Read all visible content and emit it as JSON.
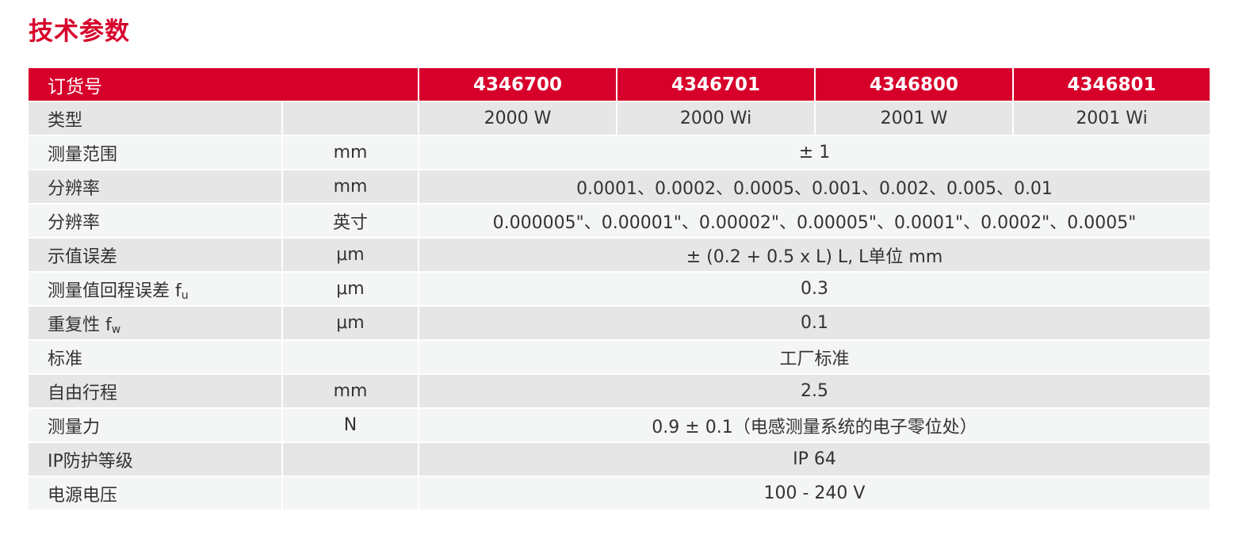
{
  "title": "技术参数",
  "header": {
    "label": "订货号",
    "order_numbers": [
      "4346700",
      "4346701",
      "4346800",
      "4346801"
    ]
  },
  "type_row": {
    "label": "类型",
    "values": [
      "2000 W",
      "2000 Wi",
      "2001 W",
      "2001 Wi"
    ]
  },
  "rows": [
    {
      "label": "测量范围",
      "sub": "",
      "unit": "mm",
      "value": "± 1"
    },
    {
      "label": "分辨率",
      "sub": "",
      "unit": "mm",
      "value": "0.0001、0.0002、0.0005、0.001、0.002、0.005、0.01"
    },
    {
      "label": "分辨率",
      "sub": "",
      "unit": "英寸",
      "value": "0.000005\"、0.00001\"、0.00002\"、0.00005\"、0.0001\"、0.0002\"、0.0005\""
    },
    {
      "label": "示值误差",
      "sub": "",
      "unit": "μm",
      "value": "± (0.2 + 0.5 x L) L, L单位 mm"
    },
    {
      "label": "测量值回程误差 f",
      "sub": "u",
      "unit": "μm",
      "value": "0.3"
    },
    {
      "label": "重复性 f",
      "sub": "w",
      "unit": "μm",
      "value": "0.1"
    },
    {
      "label": "标准",
      "sub": "",
      "unit": "",
      "value": "工厂标准"
    },
    {
      "label": "自由行程",
      "sub": "",
      "unit": "mm",
      "value": "2.5"
    },
    {
      "label": "测量力",
      "sub": "",
      "unit": "N",
      "value": "0.9 ± 0.1（电感测量系统的电子零位处）"
    },
    {
      "label": "IP防护等级",
      "sub": "",
      "unit": "",
      "value": "IP 64"
    },
    {
      "label": "电源电压",
      "sub": "",
      "unit": "",
      "value": "100 - 240 V"
    }
  ],
  "colors": {
    "accent": "#d7002b",
    "row_dark": "#e6e6e6",
    "row_light": "#f4f5f5"
  }
}
